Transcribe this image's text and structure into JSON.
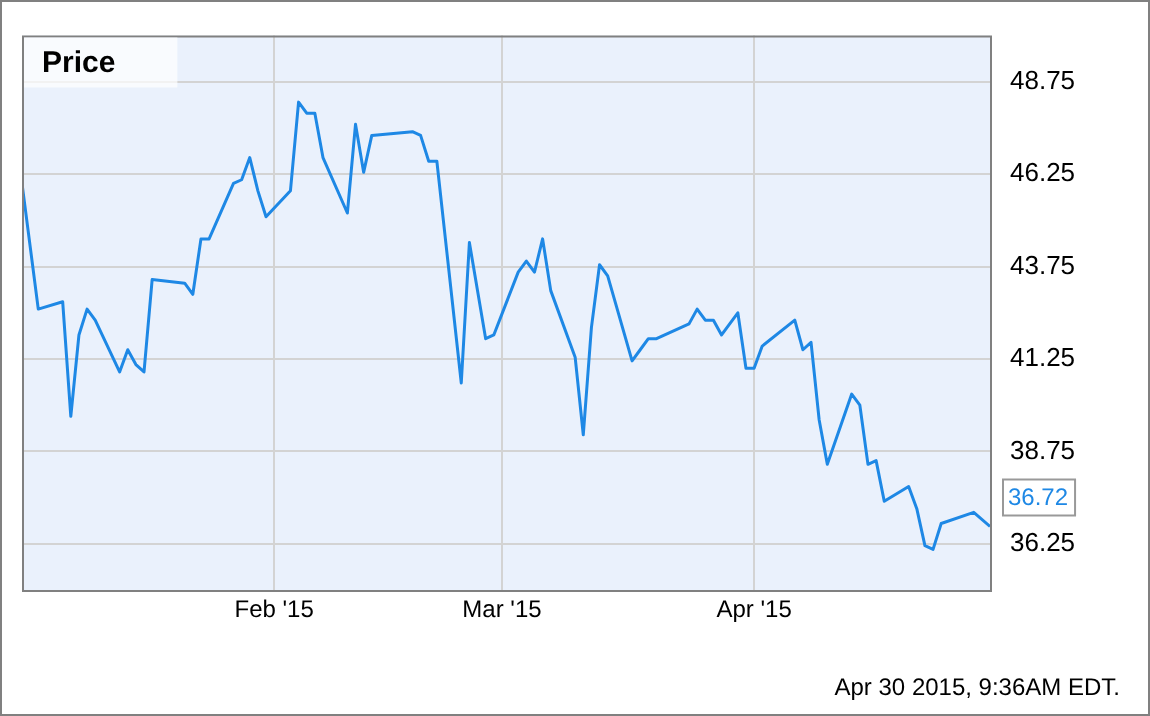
{
  "chart_data": {
    "type": "line",
    "title": "Price",
    "x": [
      "2015-01-01",
      "2015-01-03",
      "2015-01-06",
      "2015-01-07",
      "2015-01-08",
      "2015-01-09",
      "2015-01-10",
      "2015-01-13",
      "2015-01-14",
      "2015-01-15",
      "2015-01-16",
      "2015-01-17",
      "2015-01-21",
      "2015-01-22",
      "2015-01-23",
      "2015-01-24",
      "2015-01-27",
      "2015-01-28",
      "2015-01-29",
      "2015-01-30",
      "2015-01-31",
      "2015-02-03",
      "2015-02-04",
      "2015-02-05",
      "2015-02-06",
      "2015-02-07",
      "2015-02-10",
      "2015-02-11",
      "2015-02-12",
      "2015-02-13",
      "2015-02-18",
      "2015-02-19",
      "2015-02-20",
      "2015-02-21",
      "2015-02-24",
      "2015-02-25",
      "2015-02-27",
      "2015-02-28",
      "2015-03-03",
      "2015-03-04",
      "2015-03-05",
      "2015-03-06",
      "2015-03-07",
      "2015-03-10",
      "2015-03-11",
      "2015-03-12",
      "2015-03-13",
      "2015-03-14",
      "2015-03-17",
      "2015-03-18",
      "2015-03-19",
      "2015-03-20",
      "2015-03-24",
      "2015-03-25",
      "2015-03-26",
      "2015-03-27",
      "2015-03-28",
      "2015-03-30",
      "2015-03-31",
      "2015-04-01",
      "2015-04-02",
      "2015-04-06",
      "2015-04-07",
      "2015-04-08",
      "2015-04-09",
      "2015-04-10",
      "2015-04-13",
      "2015-04-14",
      "2015-04-15",
      "2015-04-16",
      "2015-04-17",
      "2015-04-20",
      "2015-04-21",
      "2015-04-22",
      "2015-04-23",
      "2015-04-24",
      "2015-04-28",
      "2015-04-30"
    ],
    "series": [
      {
        "color": "#1e88e5",
        "values": [
          46.0,
          42.6,
          42.8,
          39.7,
          41.9,
          42.6,
          42.3,
          40.9,
          41.5,
          41.1,
          40.9,
          43.4,
          43.3,
          43.0,
          44.5,
          44.5,
          46.0,
          46.1,
          46.7,
          45.8,
          45.1,
          45.8,
          48.2,
          47.9,
          47.9,
          46.7,
          45.2,
          47.6,
          46.3,
          47.3,
          47.4,
          47.3,
          46.6,
          46.6,
          40.6,
          44.4,
          41.8,
          41.9,
          43.6,
          43.9,
          43.6,
          44.5,
          43.1,
          41.3,
          39.2,
          42.1,
          43.8,
          43.5,
          41.2,
          41.5,
          41.8,
          41.8,
          42.2,
          42.6,
          42.3,
          42.3,
          41.9,
          42.5,
          41.0,
          41.0,
          41.6,
          42.3,
          41.5,
          41.7,
          39.6,
          38.4,
          40.3,
          40.0,
          38.4,
          38.5,
          37.4,
          37.8,
          37.2,
          36.2,
          36.1,
          36.8,
          37.1,
          36.72
        ],
        "value_labels": [
          null,
          null,
          null,
          null,
          null,
          null,
          null,
          null,
          null,
          null,
          null,
          null,
          null,
          null,
          null,
          null,
          null,
          null,
          null,
          null,
          null,
          null,
          null,
          null,
          null,
          null,
          null,
          null,
          null,
          null,
          null,
          null,
          null,
          null,
          null,
          null,
          null,
          null,
          null,
          null,
          null,
          null,
          null,
          null,
          null,
          null,
          null,
          null,
          null,
          null,
          null,
          null,
          null,
          null,
          null,
          null,
          null,
          null,
          null,
          null,
          null,
          null,
          null,
          null,
          null,
          null,
          null,
          null,
          null,
          null,
          null,
          null,
          null,
          null,
          null,
          null,
          null,
          "36.72"
        ]
      }
    ],
    "xlim": [
      "2015-01-01",
      "2015-04-30"
    ],
    "xticks": [
      {
        "value": "2015-02-01",
        "label": "Feb '15"
      },
      {
        "value": "2015-03-01",
        "label": "Mar '15"
      },
      {
        "value": "2015-04-01",
        "label": "Apr '15"
      }
    ],
    "ylim": [
      35,
      50
    ],
    "yticks": [
      36.25,
      38.75,
      41.25,
      43.75,
      46.25,
      48.75
    ],
    "grid": true,
    "legend": false,
    "marker": "none",
    "line_style": "solid",
    "annotations": [
      "Apr 30 2015, 9:36AM EDT."
    ]
  }
}
